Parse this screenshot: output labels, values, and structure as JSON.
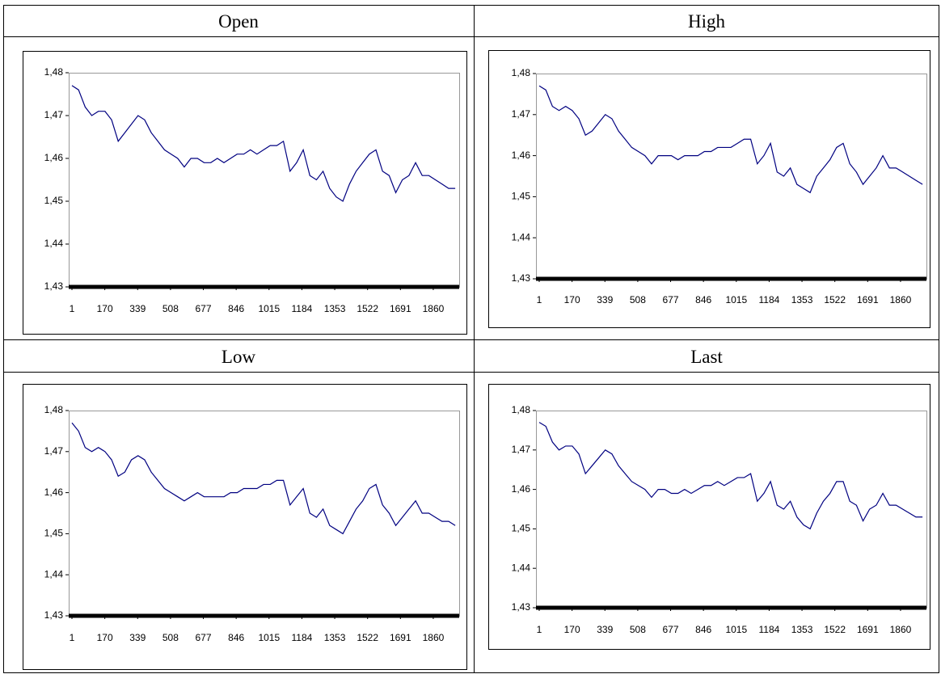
{
  "chart_data": [
    {
      "type": "line",
      "title": "Open",
      "color": "#000080",
      "x": [
        1,
        35,
        69,
        103,
        137,
        171,
        205,
        239,
        273,
        307,
        341,
        375,
        409,
        443,
        477,
        511,
        545,
        579,
        613,
        647,
        681,
        715,
        749,
        783,
        817,
        851,
        885,
        919,
        953,
        987,
        1021,
        1055,
        1089,
        1123,
        1157,
        1191,
        1225,
        1259,
        1293,
        1327,
        1361,
        1395,
        1429,
        1463,
        1497,
        1531,
        1565,
        1599,
        1633,
        1667,
        1701,
        1735,
        1769,
        1803,
        1837,
        1871,
        1905,
        1939,
        1973
      ],
      "values": [
        1.477,
        1.476,
        1.472,
        1.47,
        1.471,
        1.471,
        1.469,
        1.464,
        1.466,
        1.468,
        1.47,
        1.469,
        1.466,
        1.464,
        1.462,
        1.461,
        1.46,
        1.458,
        1.46,
        1.46,
        1.459,
        1.459,
        1.46,
        1.459,
        1.46,
        1.461,
        1.461,
        1.462,
        1.461,
        1.462,
        1.463,
        1.463,
        1.464,
        1.457,
        1.459,
        1.462,
        1.456,
        1.455,
        1.457,
        1.453,
        1.451,
        1.45,
        1.454,
        1.457,
        1.459,
        1.461,
        1.462,
        1.457,
        1.456,
        1.452,
        1.455,
        1.456,
        1.459,
        1.456,
        1.456,
        1.455,
        1.454,
        1.453,
        1.453
      ],
      "xlim": [
        1,
        1985
      ],
      "xticks": [
        1,
        170,
        339,
        508,
        677,
        846,
        1015,
        1184,
        1353,
        1522,
        1691,
        1860
      ],
      "ylim": [
        1.43,
        1.48
      ],
      "yticks": [
        {
          "value": 1.43,
          "label": "1,43"
        },
        {
          "value": 1.44,
          "label": "1,44"
        },
        {
          "value": 1.45,
          "label": "1,45"
        },
        {
          "value": 1.46,
          "label": "1,46"
        },
        {
          "value": 1.47,
          "label": "1,47"
        },
        {
          "value": 1.48,
          "label": "1,48"
        }
      ]
    },
    {
      "type": "line",
      "title": "High",
      "color": "#000080",
      "x": [
        1,
        35,
        69,
        103,
        137,
        171,
        205,
        239,
        273,
        307,
        341,
        375,
        409,
        443,
        477,
        511,
        545,
        579,
        613,
        647,
        681,
        715,
        749,
        783,
        817,
        851,
        885,
        919,
        953,
        987,
        1021,
        1055,
        1089,
        1123,
        1157,
        1191,
        1225,
        1259,
        1293,
        1327,
        1361,
        1395,
        1429,
        1463,
        1497,
        1531,
        1565,
        1599,
        1633,
        1667,
        1701,
        1735,
        1769,
        1803,
        1837,
        1871,
        1905,
        1939,
        1973
      ],
      "values": [
        1.477,
        1.476,
        1.472,
        1.471,
        1.472,
        1.471,
        1.469,
        1.465,
        1.466,
        1.468,
        1.47,
        1.469,
        1.466,
        1.464,
        1.462,
        1.461,
        1.46,
        1.458,
        1.46,
        1.46,
        1.46,
        1.459,
        1.46,
        1.46,
        1.46,
        1.461,
        1.461,
        1.462,
        1.462,
        1.462,
        1.463,
        1.464,
        1.464,
        1.458,
        1.46,
        1.463,
        1.456,
        1.455,
        1.457,
        1.453,
        1.452,
        1.451,
        1.455,
        1.457,
        1.459,
        1.462,
        1.463,
        1.458,
        1.456,
        1.453,
        1.455,
        1.457,
        1.46,
        1.457,
        1.457,
        1.456,
        1.455,
        1.454,
        1.453
      ],
      "xlim": [
        1,
        1985
      ],
      "xticks": [
        1,
        170,
        339,
        508,
        677,
        846,
        1015,
        1184,
        1353,
        1522,
        1691,
        1860
      ],
      "ylim": [
        1.43,
        1.48
      ],
      "yticks": [
        {
          "value": 1.43,
          "label": "1,43"
        },
        {
          "value": 1.44,
          "label": "1,44"
        },
        {
          "value": 1.45,
          "label": "1,45"
        },
        {
          "value": 1.46,
          "label": "1,46"
        },
        {
          "value": 1.47,
          "label": "1,47"
        },
        {
          "value": 1.48,
          "label": "1,48"
        }
      ]
    },
    {
      "type": "line",
      "title": "Low",
      "color": "#000080",
      "x": [
        1,
        35,
        69,
        103,
        137,
        171,
        205,
        239,
        273,
        307,
        341,
        375,
        409,
        443,
        477,
        511,
        545,
        579,
        613,
        647,
        681,
        715,
        749,
        783,
        817,
        851,
        885,
        919,
        953,
        987,
        1021,
        1055,
        1089,
        1123,
        1157,
        1191,
        1225,
        1259,
        1293,
        1327,
        1361,
        1395,
        1429,
        1463,
        1497,
        1531,
        1565,
        1599,
        1633,
        1667,
        1701,
        1735,
        1769,
        1803,
        1837,
        1871,
        1905,
        1939,
        1973
      ],
      "values": [
        1.477,
        1.475,
        1.471,
        1.47,
        1.471,
        1.47,
        1.468,
        1.464,
        1.465,
        1.468,
        1.469,
        1.468,
        1.465,
        1.463,
        1.461,
        1.46,
        1.459,
        1.458,
        1.459,
        1.46,
        1.459,
        1.459,
        1.459,
        1.459,
        1.46,
        1.46,
        1.461,
        1.461,
        1.461,
        1.462,
        1.462,
        1.463,
        1.463,
        1.457,
        1.459,
        1.461,
        1.455,
        1.454,
        1.456,
        1.452,
        1.451,
        1.45,
        1.453,
        1.456,
        1.458,
        1.461,
        1.462,
        1.457,
        1.455,
        1.452,
        1.454,
        1.456,
        1.458,
        1.455,
        1.455,
        1.454,
        1.453,
        1.453,
        1.452
      ],
      "xlim": [
        1,
        1985
      ],
      "xticks": [
        1,
        170,
        339,
        508,
        677,
        846,
        1015,
        1184,
        1353,
        1522,
        1691,
        1860
      ],
      "ylim": [
        1.43,
        1.48
      ],
      "yticks": [
        {
          "value": 1.43,
          "label": "1,43"
        },
        {
          "value": 1.44,
          "label": "1,44"
        },
        {
          "value": 1.45,
          "label": "1,45"
        },
        {
          "value": 1.46,
          "label": "1,46"
        },
        {
          "value": 1.47,
          "label": "1,47"
        },
        {
          "value": 1.48,
          "label": "1,48"
        }
      ]
    },
    {
      "type": "line",
      "title": "Last",
      "color": "#000080",
      "x": [
        1,
        35,
        69,
        103,
        137,
        171,
        205,
        239,
        273,
        307,
        341,
        375,
        409,
        443,
        477,
        511,
        545,
        579,
        613,
        647,
        681,
        715,
        749,
        783,
        817,
        851,
        885,
        919,
        953,
        987,
        1021,
        1055,
        1089,
        1123,
        1157,
        1191,
        1225,
        1259,
        1293,
        1327,
        1361,
        1395,
        1429,
        1463,
        1497,
        1531,
        1565,
        1599,
        1633,
        1667,
        1701,
        1735,
        1769,
        1803,
        1837,
        1871,
        1905,
        1939,
        1973
      ],
      "values": [
        1.477,
        1.476,
        1.472,
        1.47,
        1.471,
        1.471,
        1.469,
        1.464,
        1.466,
        1.468,
        1.47,
        1.469,
        1.466,
        1.464,
        1.462,
        1.461,
        1.46,
        1.458,
        1.46,
        1.46,
        1.459,
        1.459,
        1.46,
        1.459,
        1.46,
        1.461,
        1.461,
        1.462,
        1.461,
        1.462,
        1.463,
        1.463,
        1.464,
        1.457,
        1.459,
        1.462,
        1.456,
        1.455,
        1.457,
        1.453,
        1.451,
        1.45,
        1.454,
        1.457,
        1.459,
        1.462,
        1.462,
        1.457,
        1.456,
        1.452,
        1.455,
        1.456,
        1.459,
        1.456,
        1.456,
        1.455,
        1.454,
        1.453,
        1.453
      ],
      "xlim": [
        1,
        1985
      ],
      "xticks": [
        1,
        170,
        339,
        508,
        677,
        846,
        1015,
        1184,
        1353,
        1522,
        1691,
        1860
      ],
      "ylim": [
        1.43,
        1.48
      ],
      "yticks": [
        {
          "value": 1.43,
          "label": "1,43"
        },
        {
          "value": 1.44,
          "label": "1,44"
        },
        {
          "value": 1.45,
          "label": "1,45"
        },
        {
          "value": 1.46,
          "label": "1,46"
        },
        {
          "value": 1.47,
          "label": "1,47"
        },
        {
          "value": 1.48,
          "label": "1,48"
        }
      ]
    }
  ]
}
